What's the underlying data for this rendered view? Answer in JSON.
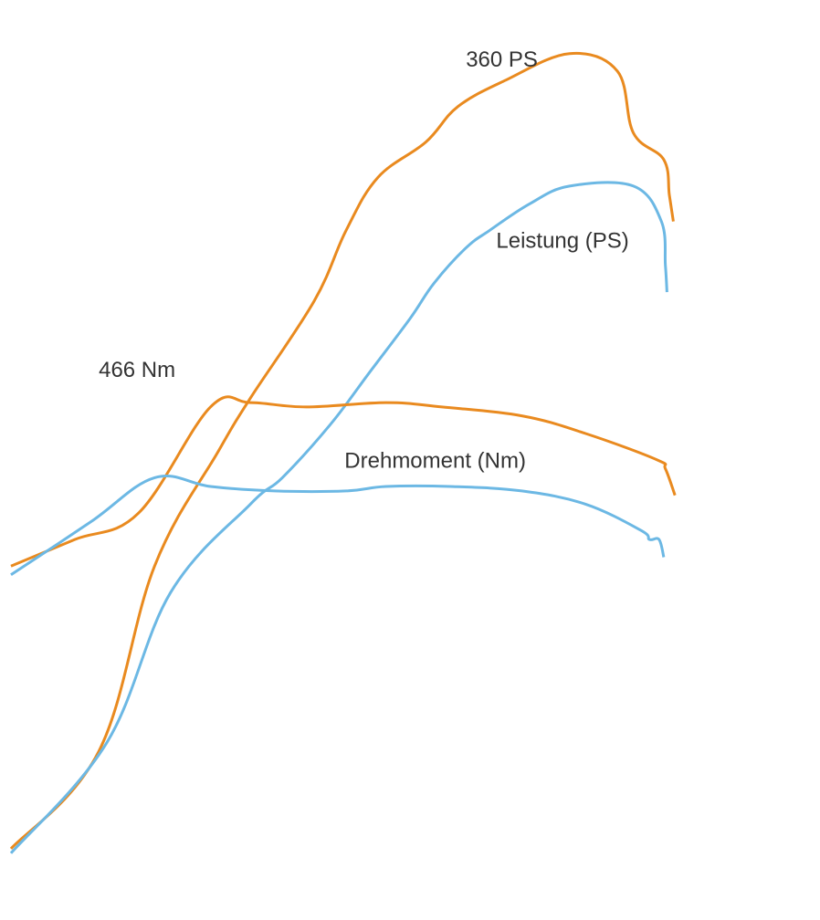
{
  "chart_data": {
    "type": "line",
    "title": "",
    "xlabel": "",
    "ylabel": "",
    "xlim": [
      0,
      1000
    ],
    "ylim": [
      0,
      1000
    ],
    "grid": false,
    "legend": "none",
    "series": [
      {
        "key": "power_tuned",
        "color": "#e98a1f",
        "x": [
          0,
          110,
          180,
          260,
          300,
          380,
          420,
          460,
          520,
          560,
          620,
          700,
          760,
          780,
          818,
          825,
          830
        ],
        "y": [
          60,
          170,
          380,
          510,
          570,
          680,
          760,
          820,
          860,
          900,
          930,
          960,
          940,
          870,
          840,
          800,
          770
        ]
      },
      {
        "key": "power_stock",
        "color": "#6cb8e4",
        "x": [
          0,
          120,
          200,
          300,
          340,
          400,
          450,
          500,
          530,
          570,
          600,
          650,
          700,
          780,
          815,
          820,
          822
        ],
        "y": [
          55,
          180,
          350,
          450,
          480,
          540,
          600,
          660,
          700,
          740,
          760,
          790,
          810,
          810,
          770,
          720,
          690
        ]
      },
      {
        "key": "torque_tuned",
        "color": "#e98a1f",
        "x": [
          0,
          80,
          160,
          250,
          300,
          370,
          470,
          540,
          640,
          720,
          810,
          820,
          832
        ],
        "y": [
          380,
          410,
          440,
          560,
          565,
          560,
          565,
          560,
          550,
          530,
          500,
          490,
          460
        ]
      },
      {
        "key": "torque_stock",
        "color": "#6cb8e4",
        "x": [
          0,
          100,
          180,
          250,
          330,
          420,
          470,
          550,
          640,
          720,
          790,
          800,
          812,
          818
        ],
        "y": [
          370,
          430,
          480,
          470,
          465,
          465,
          470,
          470,
          465,
          450,
          420,
          410,
          410,
          390
        ]
      }
    ],
    "annotations": [
      {
        "text": "360 PS",
        "x": 570,
        "y": 945,
        "bold": true
      },
      {
        "text": "Leistung (PS)",
        "x": 608,
        "y": 740,
        "bold": false
      },
      {
        "text": "466 Nm",
        "x": 110,
        "y": 594,
        "bold": true
      },
      {
        "text": "Drehmoment (Nm)",
        "x": 418,
        "y": 491,
        "bold": false
      }
    ]
  }
}
